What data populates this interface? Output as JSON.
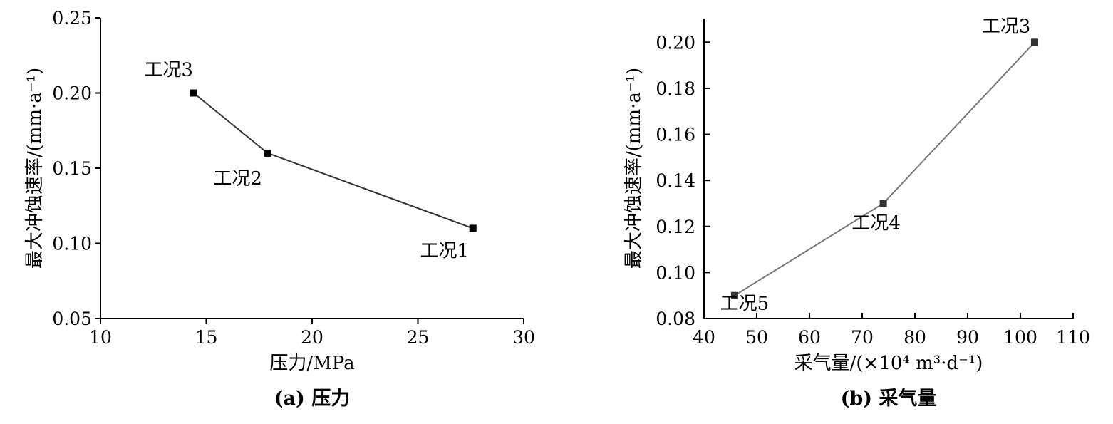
{
  "chart_data": [
    {
      "type": "line",
      "caption": "(a) 压力",
      "xlabel": "压力/MPa",
      "ylabel": "最大冲蚀速率/(mm·a⁻¹)",
      "xlim": [
        10,
        30
      ],
      "ylim": [
        0.05,
        0.25
      ],
      "xticks": [
        10,
        15,
        20,
        25,
        30
      ],
      "xtick_labels": [
        "10",
        "15",
        "20",
        "25",
        "30"
      ],
      "yticks": [
        0.05,
        0.1,
        0.15,
        0.2,
        0.25
      ],
      "ytick_labels": [
        "0.05",
        "0.10",
        "0.15",
        "0.20",
        "0.25"
      ],
      "line_color": "#333333",
      "series": [
        {
          "points": [
            {
              "x": 14.4,
              "y": 0.2,
              "label": "工况3"
            },
            {
              "x": 17.9,
              "y": 0.16,
              "label": "工况2"
            },
            {
              "x": 27.6,
              "y": 0.11,
              "label": "工况1"
            }
          ]
        }
      ]
    },
    {
      "type": "line",
      "caption": "(b) 采气量",
      "xlabel": "采气量/(×10⁴ m³·d⁻¹)",
      "ylabel": "最大冲蚀速率/(mm·a⁻¹)",
      "xlim": [
        40,
        110
      ],
      "ylim": [
        0.08,
        0.21
      ],
      "xticks": [
        40,
        50,
        60,
        70,
        80,
        90,
        100,
        110
      ],
      "xtick_labels": [
        "40",
        "50",
        "60",
        "70",
        "80",
        "90",
        "100",
        "110"
      ],
      "yticks": [
        0.08,
        0.1,
        0.12,
        0.14,
        0.16,
        0.18,
        0.2
      ],
      "ytick_labels": [
        "0.08",
        "0.10",
        "0.12",
        "0.14",
        "0.16",
        "0.18",
        "0.20"
      ],
      "line_color": "#777777",
      "series": [
        {
          "points": [
            {
              "x": 45.8,
              "y": 0.09,
              "label": "工况5"
            },
            {
              "x": 74.0,
              "y": 0.13,
              "label": "工况4"
            },
            {
              "x": 102.7,
              "y": 0.2,
              "label": "工况3"
            }
          ]
        }
      ]
    }
  ]
}
